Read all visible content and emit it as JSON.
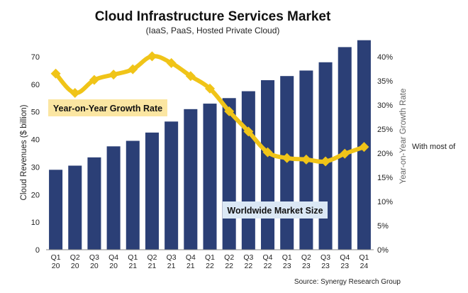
{
  "side_note": "With most of",
  "chart_data": {
    "type": "bar+line",
    "title": "Cloud Infrastructure Services Market",
    "subtitle": "(IaaS, PaaS, Hosted Private Cloud)",
    "categories": [
      [
        "Q1",
        "20"
      ],
      [
        "Q2",
        "20"
      ],
      [
        "Q3",
        "20"
      ],
      [
        "Q4",
        "20"
      ],
      [
        "Q1",
        "21"
      ],
      [
        "Q2",
        "21"
      ],
      [
        "Q3",
        "21"
      ],
      [
        "Q4",
        "21"
      ],
      [
        "Q1",
        "22"
      ],
      [
        "Q2",
        "22"
      ],
      [
        "Q3",
        "22"
      ],
      [
        "Q4",
        "22"
      ],
      [
        "Q1",
        "23"
      ],
      [
        "Q2",
        "23"
      ],
      [
        "Q3",
        "23"
      ],
      [
        "Q4",
        "23"
      ],
      [
        "Q1",
        "24"
      ]
    ],
    "bars": {
      "name": "Worldwide Market Size",
      "values": [
        29,
        30.5,
        33.5,
        37.5,
        39.5,
        42.5,
        46.5,
        51,
        53,
        55,
        57.5,
        61.5,
        63,
        65,
        68,
        73.5,
        76
      ],
      "color": "#2b3f76"
    },
    "line": {
      "name": "Year-on-Year Growth Rate",
      "values": [
        36.5,
        32.5,
        35.2,
        36.3,
        37.4,
        40.1,
        38.7,
        36,
        33.4,
        28.7,
        24.5,
        20.2,
        19,
        18.7,
        18.3,
        19.9,
        21.3
      ],
      "color": "#f0c418"
    },
    "ylabel": "Cloud Revenues ($ billion)",
    "ylim": [
      0,
      70
    ],
    "yticks": [
      0,
      10,
      20,
      30,
      40,
      50,
      60,
      70
    ],
    "y2label": "Year-on-Year Growth Rate",
    "y2lim": [
      0,
      40
    ],
    "y2ticks": [
      "0%",
      "5%",
      "10%",
      "15%",
      "20%",
      "25%",
      "30%",
      "35%",
      "40%"
    ],
    "source": "Source: Synergy Research Group",
    "grid": false
  }
}
